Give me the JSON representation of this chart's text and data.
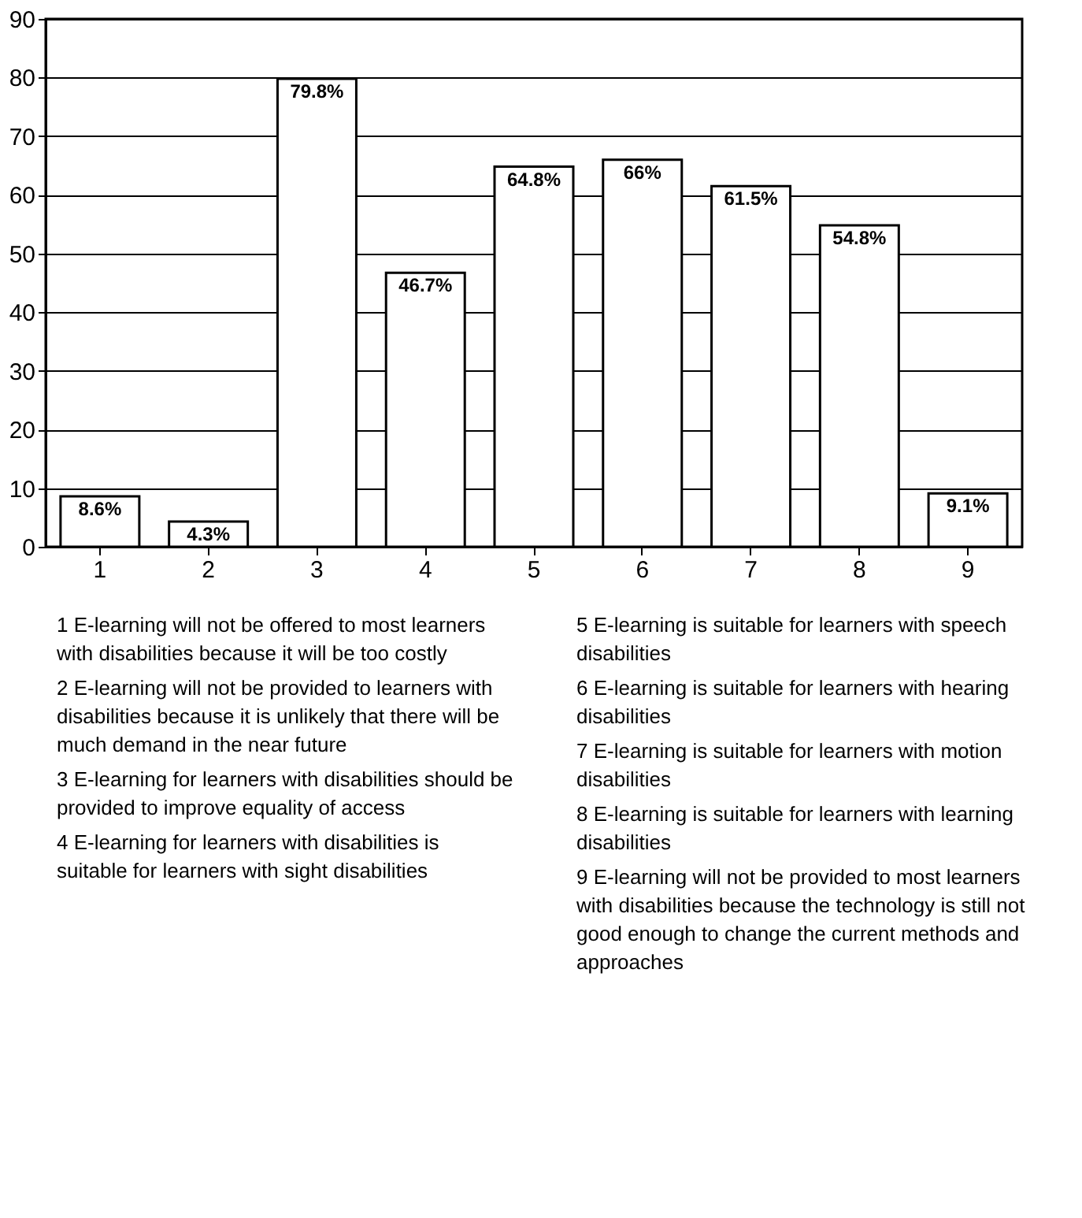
{
  "chart_data": {
    "type": "bar",
    "categories": [
      "1",
      "2",
      "3",
      "4",
      "5",
      "6",
      "7",
      "8",
      "9"
    ],
    "values": [
      8.6,
      4.3,
      79.8,
      46.7,
      64.8,
      66,
      61.5,
      54.8,
      9.1
    ],
    "value_labels": [
      "8.6%",
      "4.3%",
      "79.8%",
      "46.7%",
      "64.8%",
      "66%",
      "61.5%",
      "54.8%",
      "9.1%"
    ],
    "color": "#ffffff",
    "ylim": [
      0,
      90
    ],
    "yticks": [
      0,
      10,
      20,
      30,
      40,
      50,
      60,
      70,
      80,
      90
    ],
    "grid": "y",
    "annotations": [
      "1 E-learning will not be offered to most learners with disabilities because it will be too costly",
      "2 E-learning will not be provided to learners with disabilities because it is unlikely that there will be much demand in the near future",
      "3 E-learning for learners with disabilities should be provided to improve equality of access",
      "4 E-learning for learners with disabilities is suitable for learners with sight disabilities",
      "5 E-learning is suitable for learners with speech disabilities",
      "6 E-learning is suitable for learners with hearing disabilities",
      "7 E-learning is suitable for learners with motion disabilities",
      "8 E-learning is suitable for learners with learning disabilities",
      "9 E-learning will not be provided to most learners with disabilities because the technology is still not good enough to change the current methods and approaches"
    ]
  }
}
